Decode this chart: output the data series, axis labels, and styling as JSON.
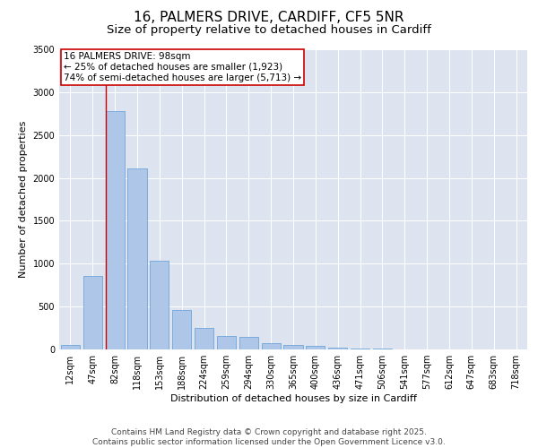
{
  "title_line1": "16, PALMERS DRIVE, CARDIFF, CF5 5NR",
  "title_line2": "Size of property relative to detached houses in Cardiff",
  "xlabel": "Distribution of detached houses by size in Cardiff",
  "ylabel": "Number of detached properties",
  "categories": [
    "12sqm",
    "47sqm",
    "82sqm",
    "118sqm",
    "153sqm",
    "188sqm",
    "224sqm",
    "259sqm",
    "294sqm",
    "330sqm",
    "365sqm",
    "400sqm",
    "436sqm",
    "471sqm",
    "506sqm",
    "541sqm",
    "577sqm",
    "612sqm",
    "647sqm",
    "683sqm",
    "718sqm"
  ],
  "values": [
    55,
    860,
    2780,
    2110,
    1030,
    460,
    250,
    160,
    145,
    70,
    55,
    40,
    20,
    10,
    8,
    4,
    3,
    2,
    1,
    1,
    0
  ],
  "bar_color": "#aec6e8",
  "bar_edge_color": "#5b9bd5",
  "annotation_box_color": "#cc0000",
  "annotation_line_color": "#cc0000",
  "annotation_text": "16 PALMERS DRIVE: 98sqm\n← 25% of detached houses are smaller (1,923)\n74% of semi-detached houses are larger (5,713) →",
  "vline_x_index": 2,
  "ylim": [
    0,
    3500
  ],
  "yticks": [
    0,
    500,
    1000,
    1500,
    2000,
    2500,
    3000,
    3500
  ],
  "background_color": "#dde4f0",
  "footer_text": "Contains HM Land Registry data © Crown copyright and database right 2025.\nContains public sector information licensed under the Open Government Licence v3.0.",
  "title_fontsize": 11,
  "subtitle_fontsize": 9.5,
  "annotation_fontsize": 7.5,
  "tick_fontsize": 7,
  "axis_label_fontsize": 8,
  "ylabel_fontsize": 8,
  "footer_fontsize": 6.5
}
